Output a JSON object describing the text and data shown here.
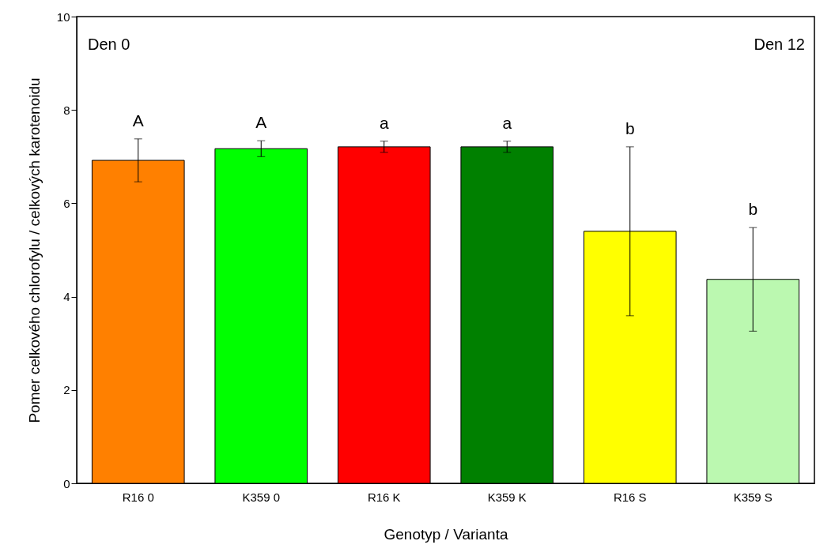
{
  "chart_data": {
    "type": "bar",
    "xlabel": "Genotyp / Varianta",
    "ylabel": "Pomer celkového chlorofylu / celkových karotenoidu",
    "categories": [
      "R16 0",
      "K359 0",
      "R16 K",
      "K359 K",
      "R16 S",
      "K359 S"
    ],
    "values": [
      6.92,
      7.17,
      7.21,
      7.21,
      5.4,
      4.37
    ],
    "errors": [
      0.46,
      0.17,
      0.12,
      0.12,
      1.81,
      1.11
    ],
    "colors": [
      "#ff8000",
      "#00ff00",
      "#ff0000",
      "#008000",
      "#ffff00",
      "#bbf8b0"
    ],
    "ylim": [
      0,
      10
    ],
    "yticks": [
      0,
      2,
      4,
      6,
      8,
      10
    ],
    "grid": false,
    "annotations": [
      "Den 0",
      "Den 12",
      "A",
      "A",
      "a",
      "a",
      "b",
      "b"
    ]
  }
}
